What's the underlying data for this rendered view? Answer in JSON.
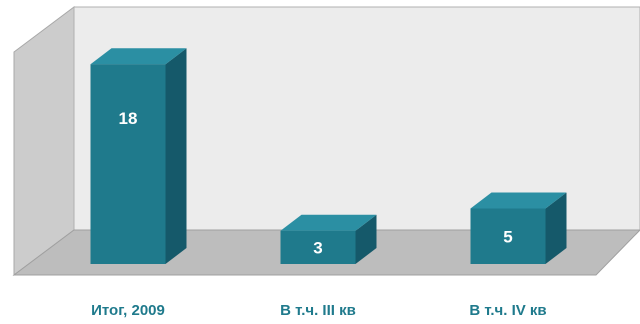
{
  "chart_data": {
    "type": "bar",
    "style": "3d",
    "categories": [
      "Итог, 2009",
      "В т.ч. III кв",
      "В т.ч. IV кв"
    ],
    "values": [
      18,
      3,
      5
    ],
    "data_labels": [
      "18",
      "3",
      "5"
    ],
    "ylim": [
      0,
      20
    ],
    "grid": false,
    "legend": "none",
    "colors": {
      "bar_front": "#1f7a8c",
      "bar_top": "#2b8fa3",
      "bar_side": "#15596a",
      "label": "#1f7a8c",
      "value_text": "#ffffff",
      "back_wall": "#ededed",
      "side_wall": "#cfcfcf",
      "floor": "#b9b9b9"
    }
  }
}
